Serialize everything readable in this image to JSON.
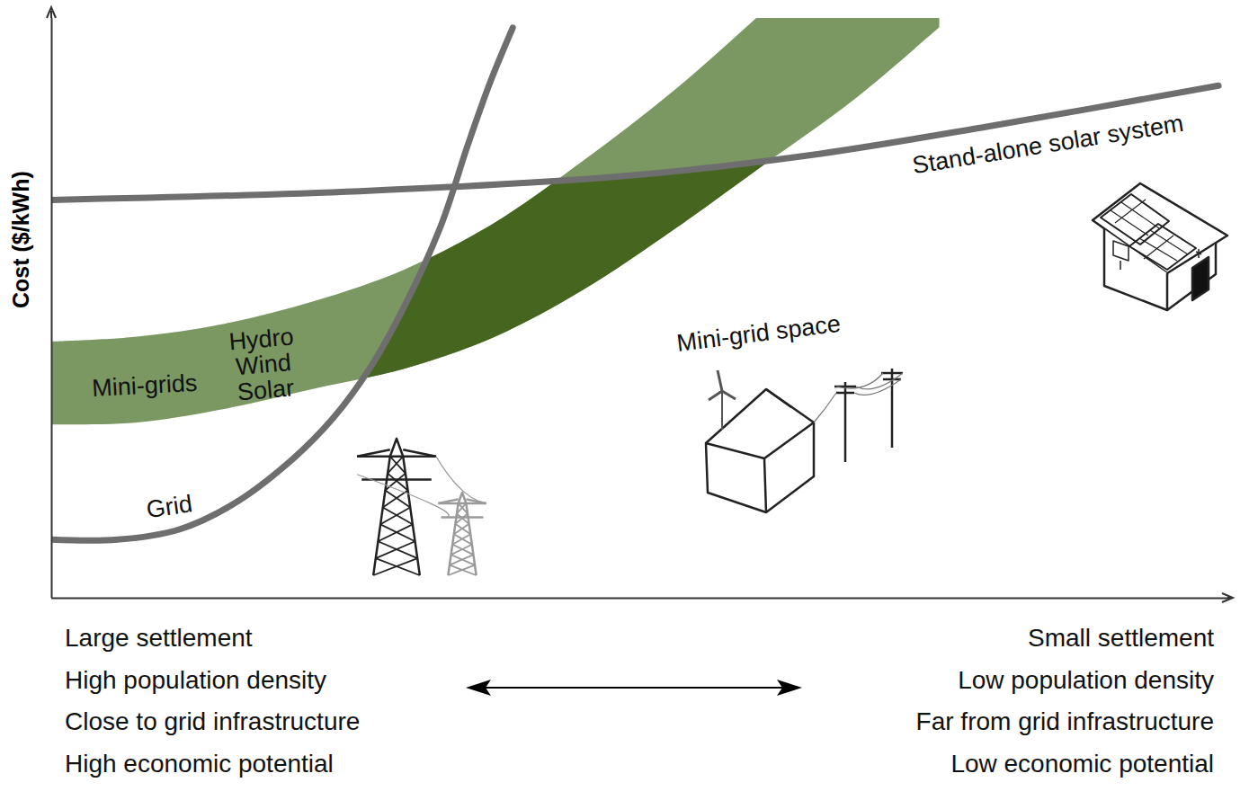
{
  "chart_data": {
    "type": "line",
    "y_label": "Cost ($/kWh)",
    "xlim": [
      0,
      100
    ],
    "ylim": [
      0,
      100
    ],
    "xticks": [],
    "yticks": [],
    "tick_labels": false,
    "grid": false,
    "series": [
      {
        "name": "Grid",
        "type": "line",
        "color": "#6e6e6e",
        "x": [
          0,
          5.6,
          10.9,
          15.5,
          20.1,
          23.9,
          27.0,
          30.0,
          33.1,
          35.4,
          37.3,
          39.2
        ],
        "values": [
          10.1,
          10.1,
          11.9,
          16.3,
          23.3,
          31.0,
          39.5,
          50.4,
          64.3,
          78.3,
          89.1,
          98.4
        ]
      },
      {
        "name": "Stand-alone solar system",
        "type": "line",
        "color": "#6e6e6e",
        "x": [
          0,
          26.2,
          49.2,
          64.4,
          79.7,
          99.2
        ],
        "values": [
          68.7,
          70.2,
          72.9,
          76.4,
          81.4,
          88.4
        ]
      },
      {
        "name": "Mini-grids",
        "type": "area",
        "colors": [
          "#7b9862",
          "#46661f"
        ],
        "x": [
          0,
          7.1,
          14.8,
          22.4,
          30.0,
          37.7,
          45.3,
          53.0,
          60.6,
          68.3,
          75.5
        ],
        "lower": [
          29.9,
          30.2,
          32.6,
          36.1,
          39.5,
          45.0,
          53.2,
          63.6,
          74.7,
          86.0,
          98.4
        ],
        "upper": [
          44.2,
          45.0,
          47.3,
          51.2,
          56.6,
          64.7,
          75.5,
          87.6,
          101.2,
          115.5,
          129.5
        ]
      }
    ],
    "annotations": [
      {
        "text": "Mini-grids",
        "x": 7.9,
        "y": 36.7
      },
      {
        "text": "Hydro\nWind\nSolar",
        "x": 18.0,
        "y": 40.3
      },
      {
        "text": "Grid",
        "x": 10.0,
        "y": 15.8
      },
      {
        "text": "Mini-grid space",
        "x": 60.1,
        "y": 45.7
      },
      {
        "text": "Stand-alone solar system",
        "x": 84.7,
        "y": 78.3
      }
    ],
    "x_left_labels": [
      "Large settlement",
      "High population density",
      "Close to grid infrastructure",
      "High economic potential"
    ],
    "x_right_labels": [
      "Small settlement",
      "Low population density",
      "Far from grid infrastructure",
      "Low economic potential"
    ]
  }
}
